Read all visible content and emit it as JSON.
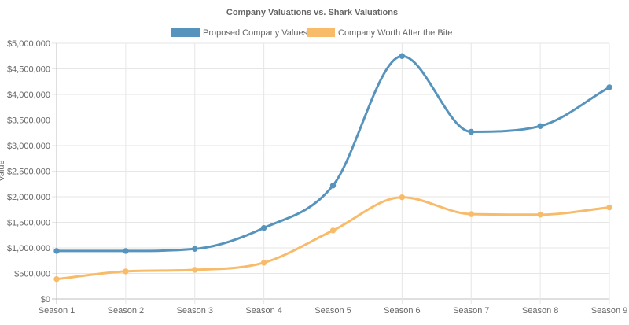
{
  "chart_data": {
    "type": "line",
    "title": "Company Valuations vs. Shark Valuations",
    "xlabel": "",
    "ylabel": "Value",
    "categories": [
      "Season 1",
      "Season 2",
      "Season 3",
      "Season 4",
      "Season 5",
      "Season 6",
      "Season 7",
      "Season 8",
      "Season 9"
    ],
    "ylim": [
      0,
      5000000
    ],
    "yticks": [
      "$0",
      "$500,000",
      "$1,000,000",
      "$1,500,000",
      "$2,000,000",
      "$2,500,000",
      "$3,000,000",
      "$3,500,000",
      "$4,000,000",
      "$4,500,000",
      "$5,000,000"
    ],
    "grid": true,
    "legend_position": "top",
    "series": [
      {
        "name": "Proposed Company Values",
        "color": "#5694bd",
        "values": [
          940000,
          940000,
          980000,
          1390000,
          2220000,
          4750000,
          3270000,
          3380000,
          4140000
        ]
      },
      {
        "name": "Company Worth After the Bite",
        "color": "#f7bb6a",
        "values": [
          390000,
          540000,
          570000,
          710000,
          1340000,
          1990000,
          1660000,
          1650000,
          1790000
        ]
      }
    ]
  }
}
